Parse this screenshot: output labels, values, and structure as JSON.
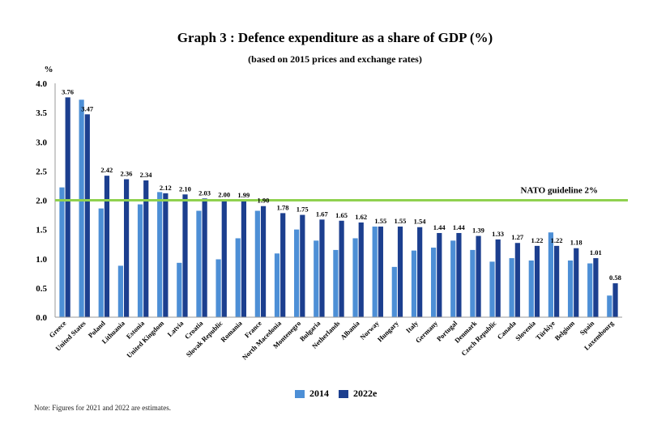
{
  "chart_data": {
    "type": "bar",
    "title": "Graph 3 : Defence expenditure as a share of GDP (%)",
    "subtitle": "(based on 2015 prices and exchange rates)",
    "ylabel": "%",
    "ylim": [
      0,
      4.0
    ],
    "yticks": [
      "0.0",
      "0.5",
      "1.0",
      "1.5",
      "2.0",
      "2.5",
      "3.0",
      "3.5",
      "4.0"
    ],
    "grid": false,
    "legend_position": "bottom-center",
    "categories": [
      "Greece",
      "United States",
      "Poland",
      "Lithuania",
      "Estonia",
      "United Kingdom",
      "Latvia",
      "Croatia",
      "Slovak Republic",
      "Romania",
      "France",
      "North Macedonia",
      "Montenegro",
      "Bulgaria",
      "Netherlands",
      "Albania",
      "Norway",
      "Hungary",
      "Italy",
      "Germany",
      "Portugal",
      "Denmark",
      "Czech Republic",
      "Canada",
      "Slovenia",
      "Türkiye",
      "Belgium",
      "Spain",
      "Luxembourg"
    ],
    "series": [
      {
        "name": "2014",
        "color": "#4d8fd6",
        "values": [
          2.22,
          3.72,
          1.86,
          0.88,
          1.93,
          2.14,
          0.93,
          1.82,
          0.99,
          1.35,
          1.82,
          1.09,
          1.5,
          1.31,
          1.15,
          1.35,
          1.55,
          0.86,
          1.14,
          1.19,
          1.31,
          1.15,
          0.95,
          1.01,
          0.97,
          1.45,
          0.97,
          0.92,
          0.37
        ]
      },
      {
        "name": "2022e",
        "color": "#1c3f8f",
        "values": [
          3.76,
          3.47,
          2.42,
          2.36,
          2.34,
          2.12,
          2.1,
          2.03,
          2.0,
          1.99,
          1.9,
          1.78,
          1.75,
          1.67,
          1.65,
          1.62,
          1.55,
          1.55,
          1.54,
          1.44,
          1.44,
          1.39,
          1.33,
          1.27,
          1.22,
          1.22,
          1.18,
          1.01,
          0.58
        ]
      }
    ],
    "data_labels": [
      "3.76",
      "3.47",
      "2.42",
      "2.36",
      "2.34",
      "2.12",
      "2.10",
      "2.03",
      "2.00",
      "1.99",
      "1.90",
      "1.78",
      "1.75",
      "1.67",
      "1.65",
      "1.62",
      "1.55",
      "1.55",
      "1.54",
      "1.44",
      "1.44",
      "1.39",
      "1.33",
      "1.27",
      "1.22",
      "1.22",
      "1.18",
      "1.01",
      "0.58"
    ],
    "reference_line": {
      "value": 2.0,
      "label": "NATO guideline 2%",
      "color": "#8fd14f"
    }
  },
  "footnote": "Note: Figures for 2021 and 2022 are estimates."
}
